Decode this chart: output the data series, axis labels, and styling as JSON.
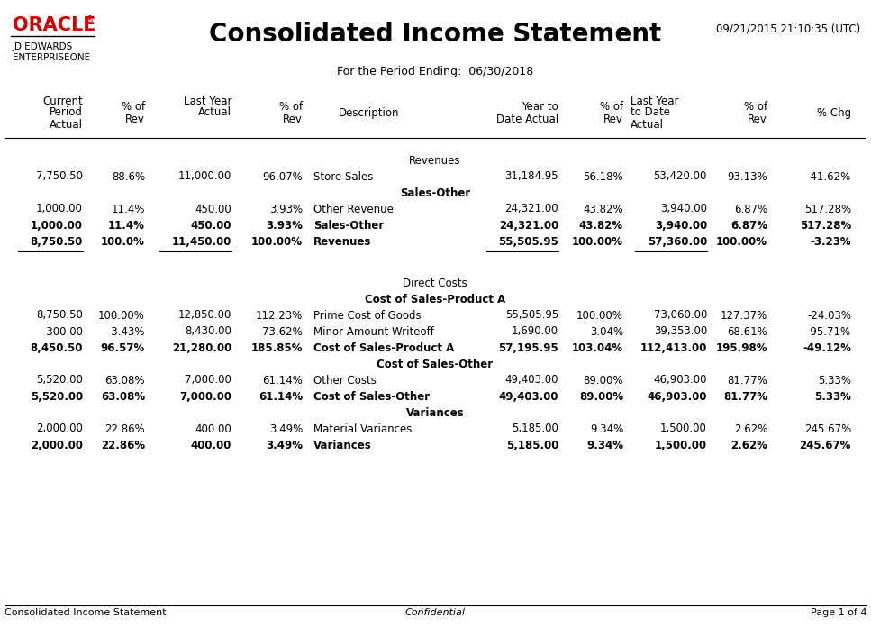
{
  "title": "Consolidated Income Statement",
  "datetime": "09/21/2015 21:10:35 (UTC)",
  "period_ending": "For the Period Ending:  06/30/2018",
  "footer_left": "Consolidated Income Statement",
  "footer_center": "Confidential",
  "footer_right": "Page 1 of 4",
  "oracle_color": "#cc0000",
  "bg_color": "#ffffff",
  "rows": [
    {
      "type": "section_header",
      "desc": "Revenues"
    },
    {
      "type": "data",
      "c1": "7,750.50",
      "c2": "88.6%",
      "c3": "11,000.00",
      "c4": "96.07%",
      "desc": "Store Sales",
      "c6": "31,184.95",
      "c7": "56.18%",
      "c8": "53,420.00",
      "c9": "93.13%",
      "c10": "-41.62%",
      "bold": false
    },
    {
      "type": "sub_hdr",
      "desc": "Sales-Other"
    },
    {
      "type": "data",
      "c1": "1,000.00",
      "c2": "11.4%",
      "c3": "450.00",
      "c4": "3.93%",
      "desc": "Other Revenue",
      "c6": "24,321.00",
      "c7": "43.82%",
      "c8": "3,940.00",
      "c9": "6.87%",
      "c10": "517.28%",
      "bold": false
    },
    {
      "type": "subtotal",
      "c1": "1,000.00",
      "c2": "11.4%",
      "c3": "450.00",
      "c4": "3.93%",
      "desc": "Sales-Other",
      "c6": "24,321.00",
      "c7": "43.82%",
      "c8": "3,940.00",
      "c9": "6.87%",
      "c10": "517.28%",
      "bold": true
    },
    {
      "type": "total",
      "c1": "8,750.50",
      "c2": "100.0%",
      "c3": "11,450.00",
      "c4": "100.00%",
      "desc": "Revenues",
      "c6": "55,505.95",
      "c7": "100.00%",
      "c8": "57,360.00",
      "c9": "100.00%",
      "c10": "-3.23%",
      "bold": true
    },
    {
      "type": "spacer_lg"
    },
    {
      "type": "section_header",
      "desc": "Direct Costs"
    },
    {
      "type": "sub_hdr",
      "desc": "Cost of Sales-Product A"
    },
    {
      "type": "data",
      "c1": "8,750.50",
      "c2": "100.00%",
      "c3": "12,850.00",
      "c4": "112.23%",
      "desc": "Prime Cost of Goods",
      "c6": "55,505.95",
      "c7": "100.00%",
      "c8": "73,060.00",
      "c9": "127.37%",
      "c10": "-24.03%",
      "bold": false
    },
    {
      "type": "data",
      "c1": "-300.00",
      "c2": "-3.43%",
      "c3": "8,430.00",
      "c4": "73.62%",
      "desc": "Minor Amount Writeoff",
      "c6": "1,690.00",
      "c7": "3.04%",
      "c8": "39,353.00",
      "c9": "68.61%",
      "c10": "-95.71%",
      "bold": false
    },
    {
      "type": "subtotal",
      "c1": "8,450.50",
      "c2": "96.57%",
      "c3": "21,280.00",
      "c4": "185.85%",
      "desc": "Cost of Sales-Product A",
      "c6": "57,195.95",
      "c7": "103.04%",
      "c8": "112,413.00",
      "c9": "195.98%",
      "c10": "-49.12%",
      "bold": true
    },
    {
      "type": "sub_hdr",
      "desc": "Cost of Sales-Other"
    },
    {
      "type": "data",
      "c1": "5,520.00",
      "c2": "63.08%",
      "c3": "7,000.00",
      "c4": "61.14%",
      "desc": "Other Costs",
      "c6": "49,403.00",
      "c7": "89.00%",
      "c8": "46,903.00",
      "c9": "81.77%",
      "c10": "5.33%",
      "bold": false
    },
    {
      "type": "subtotal",
      "c1": "5,520.00",
      "c2": "63.08%",
      "c3": "7,000.00",
      "c4": "61.14%",
      "desc": "Cost of Sales-Other",
      "c6": "49,403.00",
      "c7": "89.00%",
      "c8": "46,903.00",
      "c9": "81.77%",
      "c10": "5.33%",
      "bold": true
    },
    {
      "type": "sub_hdr",
      "desc": "Variances"
    },
    {
      "type": "data",
      "c1": "2,000.00",
      "c2": "22.86%",
      "c3": "400.00",
      "c4": "3.49%",
      "desc": "Material Variances",
      "c6": "5,185.00",
      "c7": "9.34%",
      "c8": "1,500.00",
      "c9": "2.62%",
      "c10": "245.67%",
      "bold": false
    },
    {
      "type": "subtotal",
      "c1": "2,000.00",
      "c2": "22.86%",
      "c3": "400.00",
      "c4": "3.49%",
      "desc": "Variances",
      "c6": "5,185.00",
      "c7": "9.34%",
      "c8": "1,500.00",
      "c9": "2.62%",
      "c10": "245.67%",
      "bold": true
    }
  ]
}
